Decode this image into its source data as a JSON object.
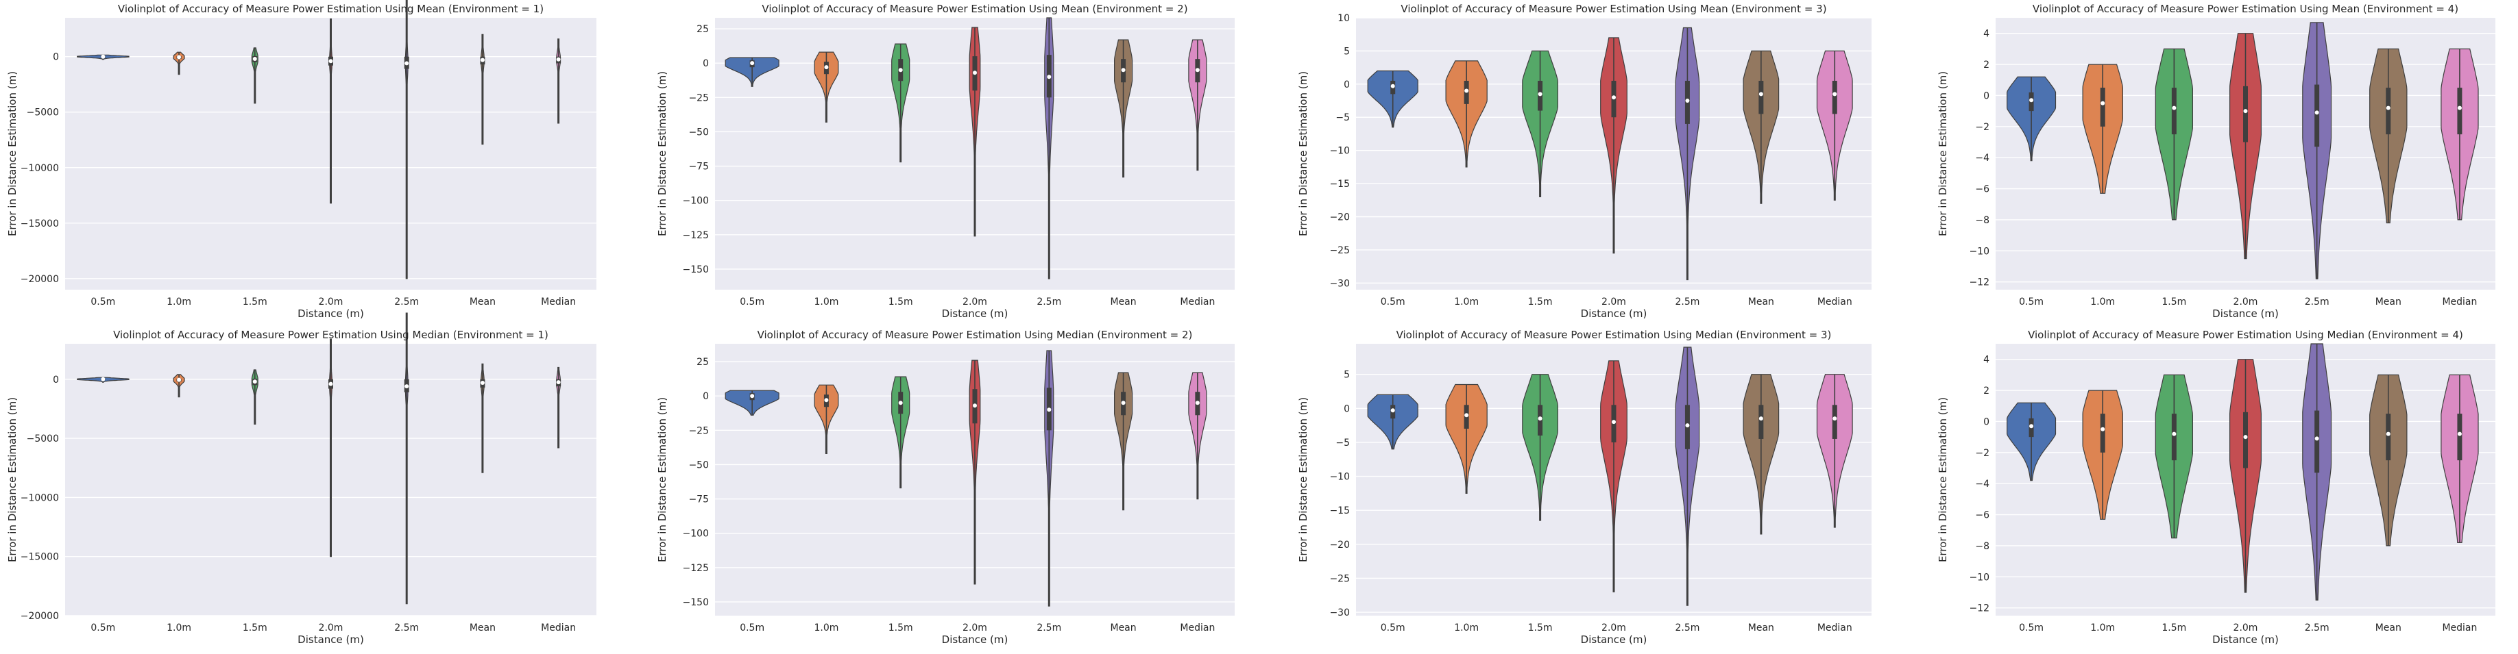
{
  "colors": {
    "plot_background": "#EAEAF2",
    "grid": "#FFFFFF",
    "text": "#262626",
    "palette": [
      "#4C72B0",
      "#DD8452",
      "#55A868",
      "#C44E52",
      "#8172B3",
      "#937860",
      "#DA8BC3"
    ]
  },
  "chart_data": [
    {
      "type": "violin",
      "title": "Violinplot of Accuracy of Measure Power Estimation Using Mean (Environment = 1)",
      "xlabel": "Distance (m)",
      "ylabel": "Error in Distance Estimation (m)",
      "categories": [
        "0.5m",
        "1.0m",
        "1.5m",
        "2.0m",
        "2.5m",
        "Mean",
        "Median"
      ],
      "ylim": [
        -21000,
        3500
      ],
      "yticks": [
        -20000,
        -15000,
        -10000,
        -5000,
        0
      ],
      "yticklabels": [
        "−20000",
        "−15000",
        "−10000",
        "−5000",
        "0"
      ],
      "violins": [
        {
          "min": -250,
          "q1": -40,
          "median": 0,
          "q3": 30,
          "max": 150,
          "width": 0.85
        },
        {
          "min": -1600,
          "q1": -200,
          "median": -50,
          "q3": 50,
          "max": 400,
          "width": 0.18
        },
        {
          "min": -4200,
          "q1": -500,
          "median": -200,
          "q3": 50,
          "max": 800,
          "width": 0.1
        },
        {
          "min": -13200,
          "q1": -800,
          "median": -400,
          "q3": 0,
          "max": 3400,
          "width": 0.04
        },
        {
          "min": -20000,
          "q1": -1100,
          "median": -600,
          "q3": 0,
          "max": 5600,
          "width": 0.04
        },
        {
          "min": -7900,
          "q1": -700,
          "median": -300,
          "q3": 0,
          "max": 2000,
          "width": 0.05
        },
        {
          "min": -6000,
          "q1": -600,
          "median": -250,
          "q3": 0,
          "max": 1600,
          "width": 0.06
        }
      ]
    },
    {
      "type": "violin",
      "title": "Violinplot of Accuracy of Measure Power Estimation Using Mean (Environment = 2)",
      "xlabel": "Distance (m)",
      "ylabel": "Error in Distance Estimation (m)",
      "categories": [
        "0.5m",
        "1.0m",
        "1.5m",
        "2.0m",
        "2.5m",
        "Mean",
        "Median"
      ],
      "ylim": [
        -165,
        33
      ],
      "yticks": [
        -150,
        -125,
        -100,
        -75,
        -50,
        -25,
        0,
        25
      ],
      "yticklabels": [
        "−150",
        "−125",
        "−100",
        "−75",
        "−50",
        "−25",
        "0",
        "25"
      ],
      "violins": [
        {
          "min": -17,
          "q1": -3,
          "median": 0,
          "q3": 2,
          "max": 4,
          "width": 0.9
        },
        {
          "min": -43,
          "q1": -8,
          "median": -3,
          "q3": 1,
          "max": 8,
          "width": 0.4
        },
        {
          "min": -72,
          "q1": -13,
          "median": -5,
          "q3": 3,
          "max": 14,
          "width": 0.3
        },
        {
          "min": -126,
          "q1": -20,
          "median": -7,
          "q3": 5,
          "max": 26,
          "width": 0.18
        },
        {
          "min": -157,
          "q1": -25,
          "median": -10,
          "q3": 6,
          "max": 33,
          "width": 0.15
        },
        {
          "min": -83,
          "q1": -14,
          "median": -5,
          "q3": 3,
          "max": 17,
          "width": 0.3
        },
        {
          "min": -78,
          "q1": -14,
          "median": -5,
          "q3": 3,
          "max": 17,
          "width": 0.3
        }
      ]
    },
    {
      "type": "violin",
      "title": "Violinplot of Accuracy of Measure Power Estimation Using Mean (Environment = 3)",
      "xlabel": "Distance (m)",
      "ylabel": "Error in Distance Estimation (m)",
      "categories": [
        "0.5m",
        "1.0m",
        "1.5m",
        "2.0m",
        "2.5m",
        "Mean",
        "Median"
      ],
      "ylim": [
        -31,
        10
      ],
      "yticks": [
        -30,
        -25,
        -20,
        -15,
        -10,
        -5,
        0,
        5,
        10
      ],
      "yticklabels": [
        "−30",
        "−25",
        "−20",
        "−15",
        "−10",
        "−5",
        "0",
        "5",
        "10"
      ],
      "violins": [
        {
          "min": -6.5,
          "q1": -1.5,
          "median": -0.3,
          "q3": 0.5,
          "max": 2,
          "width": 0.85
        },
        {
          "min": -12.5,
          "q1": -3,
          "median": -1,
          "q3": 0.5,
          "max": 3.5,
          "width": 0.7
        },
        {
          "min": -17,
          "q1": -4,
          "median": -1.5,
          "q3": 0.5,
          "max": 5,
          "width": 0.6
        },
        {
          "min": -25.5,
          "q1": -5,
          "median": -2,
          "q3": 0.5,
          "max": 7,
          "width": 0.45
        },
        {
          "min": -29.5,
          "q1": -6,
          "median": -2.5,
          "q3": 0.5,
          "max": 8.5,
          "width": 0.4
        },
        {
          "min": -18,
          "q1": -4.5,
          "median": -1.5,
          "q3": 0.5,
          "max": 5,
          "width": 0.6
        },
        {
          "min": -17.5,
          "q1": -4.5,
          "median": -1.5,
          "q3": 0.5,
          "max": 5,
          "width": 0.6
        }
      ]
    },
    {
      "type": "violin",
      "title": "Violinplot of Accuracy of Measure Power Estimation Using Mean (Environment = 4)",
      "xlabel": "Distance (m)",
      "ylabel": "Error in Distance Estimation (m)",
      "categories": [
        "0.5m",
        "1.0m",
        "1.5m",
        "2.0m",
        "2.5m",
        "Mean",
        "Median"
      ],
      "ylim": [
        -12.5,
        5
      ],
      "yticks": [
        -12,
        -10,
        -8,
        -6,
        -4,
        -2,
        0,
        2,
        4
      ],
      "yticklabels": [
        "−12",
        "−10",
        "−8",
        "−6",
        "−4",
        "−2",
        "0",
        "2",
        "4"
      ],
      "violins": [
        {
          "min": -4.2,
          "q1": -1,
          "median": -0.3,
          "q3": 0.2,
          "max": 1.2,
          "width": 0.85
        },
        {
          "min": -6.3,
          "q1": -2,
          "median": -0.5,
          "q3": 0.5,
          "max": 2,
          "width": 0.7
        },
        {
          "min": -8,
          "q1": -2.5,
          "median": -0.8,
          "q3": 0.5,
          "max": 3,
          "width": 0.65
        },
        {
          "min": -10.5,
          "q1": -3,
          "median": -1,
          "q3": 0.6,
          "max": 4,
          "width": 0.55
        },
        {
          "min": -11.8,
          "q1": -3.3,
          "median": -1.1,
          "q3": 0.7,
          "max": 4.7,
          "width": 0.5
        },
        {
          "min": -8.2,
          "q1": -2.5,
          "median": -0.8,
          "q3": 0.5,
          "max": 3,
          "width": 0.65
        },
        {
          "min": -8,
          "q1": -2.5,
          "median": -0.8,
          "q3": 0.5,
          "max": 3,
          "width": 0.65
        }
      ]
    },
    {
      "type": "violin",
      "title": "Violinplot of Accuracy of Measure Power Estimation Using Median (Environment = 1)",
      "xlabel": "Distance (m)",
      "ylabel": "Error in Distance Estimation (m)",
      "categories": [
        "0.5m",
        "1.0m",
        "1.5m",
        "2.0m",
        "2.5m",
        "Mean",
        "Median"
      ],
      "ylim": [
        -20000,
        3000
      ],
      "yticks": [
        -20000,
        -15000,
        -10000,
        -5000,
        0
      ],
      "yticklabels": [
        "−20000",
        "−15000",
        "−10000",
        "−5000",
        "0"
      ],
      "violins": [
        {
          "min": -250,
          "q1": -40,
          "median": 0,
          "q3": 30,
          "max": 150,
          "width": 0.85
        },
        {
          "min": -1500,
          "q1": -200,
          "median": -50,
          "q3": 50,
          "max": 400,
          "width": 0.18
        },
        {
          "min": -3800,
          "q1": -500,
          "median": -200,
          "q3": 50,
          "max": 800,
          "width": 0.1
        },
        {
          "min": -15000,
          "q1": -800,
          "median": -400,
          "q3": 0,
          "max": 3400,
          "width": 0.04
        },
        {
          "min": -19000,
          "q1": -1100,
          "median": -600,
          "q3": 0,
          "max": 5600,
          "width": 0.04
        },
        {
          "min": -7900,
          "q1": -700,
          "median": -300,
          "q3": 0,
          "max": 1300,
          "width": 0.05
        },
        {
          "min": -5800,
          "q1": -600,
          "median": -250,
          "q3": 0,
          "max": 1000,
          "width": 0.06
        }
      ]
    },
    {
      "type": "violin",
      "title": "Violinplot of Accuracy of Measure Power Estimation Using Median (Environment = 2)",
      "xlabel": "Distance (m)",
      "ylabel": "Error in Distance Estimation (m)",
      "categories": [
        "0.5m",
        "1.0m",
        "1.5m",
        "2.0m",
        "2.5m",
        "Mean",
        "Median"
      ],
      "ylim": [
        -160,
        38
      ],
      "yticks": [
        -150,
        -125,
        -100,
        -75,
        -50,
        -25,
        0,
        25
      ],
      "yticklabels": [
        "−150",
        "−125",
        "−100",
        "−75",
        "−50",
        "−25",
        "0",
        "25"
      ],
      "violins": [
        {
          "min": -14,
          "q1": -3,
          "median": 0,
          "q3": 2,
          "max": 4,
          "width": 0.9
        },
        {
          "min": -42,
          "q1": -8,
          "median": -3,
          "q3": 1,
          "max": 8,
          "width": 0.4
        },
        {
          "min": -67,
          "q1": -13,
          "median": -5,
          "q3": 3,
          "max": 14,
          "width": 0.3
        },
        {
          "min": -137,
          "q1": -20,
          "median": -7,
          "q3": 5,
          "max": 26,
          "width": 0.18
        },
        {
          "min": -153,
          "q1": -25,
          "median": -10,
          "q3": 6,
          "max": 33,
          "width": 0.15
        },
        {
          "min": -83,
          "q1": -14,
          "median": -5,
          "q3": 3,
          "max": 17,
          "width": 0.3
        },
        {
          "min": -75,
          "q1": -14,
          "median": -5,
          "q3": 3,
          "max": 17,
          "width": 0.3
        }
      ]
    },
    {
      "type": "violin",
      "title": "Violinplot of Accuracy of Measure Power Estimation Using Median (Environment = 3)",
      "xlabel": "Distance (m)",
      "ylabel": "Error in Distance Estimation (m)",
      "categories": [
        "0.5m",
        "1.0m",
        "1.5m",
        "2.0m",
        "2.5m",
        "Mean",
        "Median"
      ],
      "ylim": [
        -30.5,
        9.5
      ],
      "yticks": [
        -30,
        -25,
        -20,
        -15,
        -10,
        -5,
        0,
        5
      ],
      "yticklabels": [
        "−30",
        "−25",
        "−20",
        "−15",
        "−10",
        "−5",
        "0",
        "5"
      ],
      "violins": [
        {
          "min": -6,
          "q1": -1.5,
          "median": -0.3,
          "q3": 0.5,
          "max": 2,
          "width": 0.85
        },
        {
          "min": -12.5,
          "q1": -3,
          "median": -1,
          "q3": 0.5,
          "max": 3.5,
          "width": 0.7
        },
        {
          "min": -16.5,
          "q1": -4,
          "median": -1.5,
          "q3": 0.5,
          "max": 5,
          "width": 0.6
        },
        {
          "min": -27,
          "q1": -5,
          "median": -2,
          "q3": 0.5,
          "max": 7,
          "width": 0.45
        },
        {
          "min": -29,
          "q1": -6,
          "median": -2.5,
          "q3": 0.5,
          "max": 9,
          "width": 0.4
        },
        {
          "min": -18.5,
          "q1": -4.5,
          "median": -1.5,
          "q3": 0.5,
          "max": 5,
          "width": 0.6
        },
        {
          "min": -17.5,
          "q1": -4.5,
          "median": -1.5,
          "q3": 0.5,
          "max": 5,
          "width": 0.6
        }
      ]
    },
    {
      "type": "violin",
      "title": "Violinplot of Accuracy of Measure Power Estimation Using Median (Environment = 4)",
      "xlabel": "Distance (m)",
      "ylabel": "Error in Distance Estimation (m)",
      "categories": [
        "0.5m",
        "1.0m",
        "1.5m",
        "2.0m",
        "2.5m",
        "Mean",
        "Median"
      ],
      "ylim": [
        -12.5,
        5
      ],
      "yticks": [
        -12,
        -10,
        -8,
        -6,
        -4,
        -2,
        0,
        2,
        4
      ],
      "yticklabels": [
        "−12",
        "−10",
        "−8",
        "−6",
        "−4",
        "−2",
        "0",
        "2",
        "4"
      ],
      "violins": [
        {
          "min": -3.8,
          "q1": -1,
          "median": -0.3,
          "q3": 0.2,
          "max": 1.2,
          "width": 0.85
        },
        {
          "min": -6.3,
          "q1": -2,
          "median": -0.5,
          "q3": 0.5,
          "max": 2,
          "width": 0.7
        },
        {
          "min": -7.5,
          "q1": -2.5,
          "median": -0.8,
          "q3": 0.5,
          "max": 3,
          "width": 0.65
        },
        {
          "min": -11,
          "q1": -3,
          "median": -1,
          "q3": 0.6,
          "max": 4,
          "width": 0.55
        },
        {
          "min": -11.5,
          "q1": -3.3,
          "median": -1.1,
          "q3": 0.7,
          "max": 5,
          "width": 0.5
        },
        {
          "min": -8,
          "q1": -2.5,
          "median": -0.8,
          "q3": 0.5,
          "max": 3,
          "width": 0.65
        },
        {
          "min": -7.8,
          "q1": -2.5,
          "median": -0.8,
          "q3": 0.5,
          "max": 3,
          "width": 0.65
        }
      ]
    }
  ]
}
